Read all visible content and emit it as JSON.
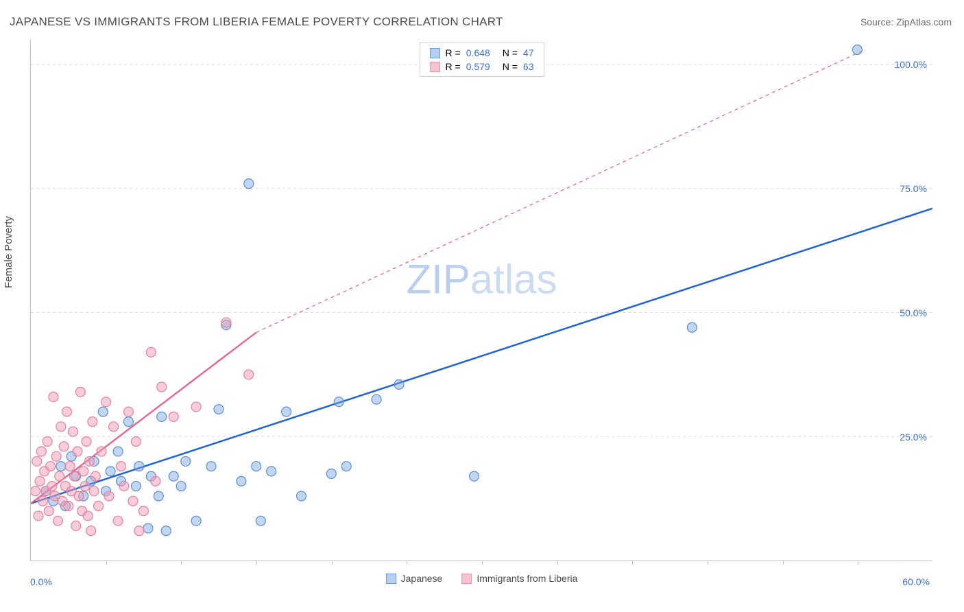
{
  "title": "JAPANESE VS IMMIGRANTS FROM LIBERIA FEMALE POVERTY CORRELATION CHART",
  "source": "Source: ZipAtlas.com",
  "y_axis_label": "Female Poverty",
  "watermark": "ZIPatlas",
  "chart": {
    "type": "scatter",
    "xlim": [
      0,
      60
    ],
    "ylim": [
      0,
      105
    ],
    "x_tick_step": 5,
    "y_grid_at": [
      25,
      50,
      75,
      100
    ],
    "x_axis_min_label": "0.0%",
    "x_axis_max_label": "60.0%",
    "y_tick_labels": [
      "25.0%",
      "50.0%",
      "75.0%",
      "100.0%"
    ],
    "y_tick_color": "#3a6fd8",
    "x_tick_color": "#3a6fd8",
    "background_color": "#ffffff",
    "grid_color": "#d7d7d7",
    "axis_color": "#bfbfbf",
    "marker_radius": 7,
    "marker_stroke_width": 1.2,
    "series": [
      {
        "name": "Japanese",
        "color_fill": "rgba(115,165,225,0.45)",
        "color_stroke": "#5d8dd4",
        "swatch_fill": "#b7cff0",
        "swatch_border": "#6a98d9",
        "R": "0.648",
        "N": "47",
        "trend": {
          "color": "#1f63d6",
          "width": 2.5,
          "dash_after_x": 60,
          "from": [
            0,
            11.5
          ],
          "to": [
            60,
            71
          ]
        },
        "points": [
          [
            1.0,
            14
          ],
          [
            1.5,
            12
          ],
          [
            2.0,
            19
          ],
          [
            2.3,
            11
          ],
          [
            2.7,
            21
          ],
          [
            3.0,
            17
          ],
          [
            3.5,
            13
          ],
          [
            4.0,
            16
          ],
          [
            4.2,
            20
          ],
          [
            4.8,
            30
          ],
          [
            5.0,
            14
          ],
          [
            5.3,
            18
          ],
          [
            5.8,
            22
          ],
          [
            6.0,
            16
          ],
          [
            6.5,
            28
          ],
          [
            7.0,
            15
          ],
          [
            7.2,
            19
          ],
          [
            7.8,
            6.5
          ],
          [
            8.0,
            17
          ],
          [
            8.5,
            13
          ],
          [
            8.7,
            29
          ],
          [
            9.0,
            6
          ],
          [
            9.5,
            17
          ],
          [
            10.0,
            15
          ],
          [
            10.3,
            20
          ],
          [
            11.0,
            8
          ],
          [
            12.0,
            19
          ],
          [
            12.5,
            30.5
          ],
          [
            13.0,
            47.5
          ],
          [
            14.0,
            16
          ],
          [
            14.5,
            76
          ],
          [
            15.0,
            19
          ],
          [
            15.3,
            8
          ],
          [
            16.0,
            18
          ],
          [
            17.0,
            30
          ],
          [
            18.0,
            13
          ],
          [
            20.0,
            17.5
          ],
          [
            20.5,
            32
          ],
          [
            21.0,
            19
          ],
          [
            23.0,
            32.5
          ],
          [
            24.5,
            35.5
          ],
          [
            29.5,
            17
          ],
          [
            44.0,
            47
          ],
          [
            55.0,
            103
          ]
        ]
      },
      {
        "name": "Immigrants from Liberia",
        "color_fill": "rgba(240,155,180,0.5)",
        "color_stroke": "#e6809e",
        "swatch_fill": "#f6c2d0",
        "swatch_border": "#eb94ac",
        "R": "0.579",
        "N": "63",
        "trend": {
          "color": "#e85f8a",
          "width": 2.3,
          "dash_after_x": 15,
          "from": [
            0,
            11.5
          ],
          "to_solid": [
            15,
            46
          ],
          "to": [
            55.5,
            103
          ]
        },
        "points": [
          [
            0.3,
            14
          ],
          [
            0.4,
            20
          ],
          [
            0.5,
            9
          ],
          [
            0.6,
            16
          ],
          [
            0.7,
            22
          ],
          [
            0.8,
            12
          ],
          [
            0.9,
            18
          ],
          [
            1.0,
            14
          ],
          [
            1.1,
            24
          ],
          [
            1.2,
            10
          ],
          [
            1.3,
            19
          ],
          [
            1.4,
            15
          ],
          [
            1.5,
            33
          ],
          [
            1.6,
            13
          ],
          [
            1.7,
            21
          ],
          [
            1.8,
            8
          ],
          [
            1.9,
            17
          ],
          [
            2.0,
            27
          ],
          [
            2.1,
            12
          ],
          [
            2.2,
            23
          ],
          [
            2.3,
            15
          ],
          [
            2.4,
            30
          ],
          [
            2.5,
            11
          ],
          [
            2.6,
            19
          ],
          [
            2.7,
            14
          ],
          [
            2.8,
            26
          ],
          [
            2.9,
            17
          ],
          [
            3.0,
            7
          ],
          [
            3.1,
            22
          ],
          [
            3.2,
            13
          ],
          [
            3.3,
            34
          ],
          [
            3.4,
            10
          ],
          [
            3.5,
            18
          ],
          [
            3.6,
            15
          ],
          [
            3.7,
            24
          ],
          [
            3.8,
            9
          ],
          [
            3.9,
            20
          ],
          [
            4.0,
            6
          ],
          [
            4.1,
            28
          ],
          [
            4.2,
            14
          ],
          [
            4.3,
            17
          ],
          [
            4.5,
            11
          ],
          [
            4.7,
            22
          ],
          [
            5.0,
            32
          ],
          [
            5.2,
            13
          ],
          [
            5.5,
            27
          ],
          [
            5.8,
            8
          ],
          [
            6.0,
            19
          ],
          [
            6.2,
            15
          ],
          [
            6.5,
            30
          ],
          [
            6.8,
            12
          ],
          [
            7.0,
            24
          ],
          [
            7.2,
            6
          ],
          [
            7.5,
            10
          ],
          [
            8.0,
            42
          ],
          [
            8.3,
            16
          ],
          [
            8.7,
            35
          ],
          [
            9.5,
            29
          ],
          [
            11.0,
            31
          ],
          [
            13.0,
            48
          ],
          [
            14.5,
            37.5
          ]
        ]
      }
    ]
  },
  "legend_bottom": {
    "items": [
      "Japanese",
      "Immigrants from Liberia"
    ]
  }
}
